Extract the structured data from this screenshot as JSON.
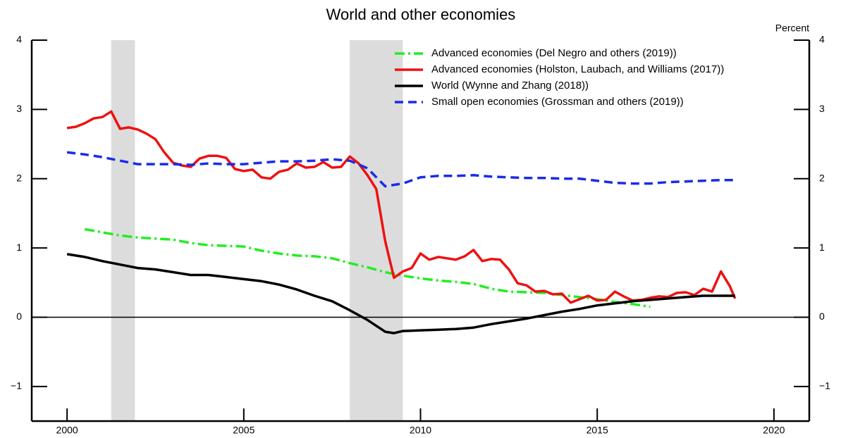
{
  "chart_data": {
    "type": "line",
    "title": "World and other economies",
    "y_label": "Percent",
    "xlim": [
      1999,
      2021
    ],
    "xticks": [
      2000,
      2005,
      2010,
      2015,
      2020
    ],
    "ylim": [
      -1.5,
      4
    ],
    "yticks": [
      {
        "value": -1,
        "label": "−1"
      },
      0,
      1,
      2,
      3,
      4
    ],
    "zero_line": true,
    "shaded_periods": [
      [
        2001.25,
        2001.92
      ],
      [
        2008.0,
        2009.5
      ]
    ],
    "shade_color": "#dcdcdc",
    "series": [
      {
        "name": "Advanced economies (Del Negro and others (2019))",
        "color": "#22ee22",
        "line_style": "dash-dot",
        "x": [
          2000.5,
          2001.5,
          2002,
          2003,
          2003.5,
          2004,
          2005,
          2005.5,
          2006,
          2006.5,
          2007,
          2007.5,
          2008,
          2008.5,
          2009,
          2009.5,
          2010,
          2010.5,
          2011,
          2011.5,
          2012,
          2012.5,
          2013,
          2013.5,
          2014,
          2014.5,
          2015,
          2015.5,
          2016,
          2016.5
        ],
        "values": [
          1.27,
          1.18,
          1.15,
          1.12,
          1.07,
          1.04,
          1.02,
          0.96,
          0.92,
          0.89,
          0.88,
          0.85,
          0.78,
          0.72,
          0.65,
          0.6,
          0.56,
          0.53,
          0.51,
          0.48,
          0.41,
          0.37,
          0.36,
          0.35,
          0.32,
          0.29,
          0.26,
          0.22,
          0.19,
          0.15
        ]
      },
      {
        "name": "Advanced economies (Holston, Laubach, and Williams (2017))",
        "color": "#ee1111",
        "line_style": "solid",
        "x": [
          2000,
          2000.25,
          2000.5,
          2000.75,
          2001,
          2001.25,
          2001.5,
          2001.75,
          2002,
          2002.25,
          2002.5,
          2002.75,
          2003,
          2003.25,
          2003.5,
          2003.75,
          2004,
          2004.25,
          2004.5,
          2004.75,
          2005,
          2005.25,
          2005.5,
          2005.75,
          2006,
          2006.25,
          2006.5,
          2006.75,
          2007,
          2007.25,
          2007.5,
          2007.75,
          2008,
          2008.25,
          2008.5,
          2008.75,
          2009,
          2009.25,
          2009.5,
          2009.75,
          2010,
          2010.25,
          2010.5,
          2010.75,
          2011,
          2011.25,
          2011.5,
          2011.75,
          2012,
          2012.25,
          2012.5,
          2012.75,
          2013,
          2013.25,
          2013.5,
          2013.75,
          2014,
          2014.25,
          2014.5,
          2014.75,
          2015,
          2015.25,
          2015.5,
          2015.75,
          2016,
          2016.25,
          2016.5,
          2016.75,
          2017,
          2017.25,
          2017.5,
          2017.75,
          2018,
          2018.25,
          2018.5,
          2018.75,
          2018.9
        ],
        "values": [
          2.73,
          2.75,
          2.8,
          2.87,
          2.89,
          2.97,
          2.72,
          2.74,
          2.71,
          2.65,
          2.57,
          2.38,
          2.23,
          2.19,
          2.17,
          2.29,
          2.33,
          2.33,
          2.3,
          2.14,
          2.11,
          2.13,
          2.02,
          2.0,
          2.1,
          2.13,
          2.22,
          2.16,
          2.17,
          2.24,
          2.16,
          2.17,
          2.32,
          2.22,
          2.05,
          1.85,
          1.1,
          0.57,
          0.66,
          0.71,
          0.92,
          0.83,
          0.87,
          0.85,
          0.83,
          0.88,
          0.97,
          0.81,
          0.84,
          0.83,
          0.69,
          0.49,
          0.46,
          0.37,
          0.38,
          0.33,
          0.34,
          0.21,
          0.26,
          0.31,
          0.24,
          0.25,
          0.37,
          0.3,
          0.24,
          0.25,
          0.28,
          0.3,
          0.29,
          0.35,
          0.36,
          0.32,
          0.41,
          0.37,
          0.66,
          0.45,
          0.27
        ]
      },
      {
        "name": "World (Wynne and Zhang (2018))",
        "color": "#000000",
        "line_style": "solid",
        "x": [
          2000,
          2000.5,
          2001,
          2001.5,
          2002,
          2002.5,
          2003,
          2003.5,
          2004,
          2004.5,
          2005,
          2005.5,
          2006,
          2006.5,
          2007,
          2007.5,
          2008,
          2008.5,
          2009,
          2009.25,
          2009.5,
          2010,
          2010.5,
          2011,
          2011.5,
          2012,
          2012.5,
          2013,
          2013.5,
          2014,
          2014.5,
          2015,
          2015.5,
          2016,
          2016.5,
          2017,
          2017.5,
          2018,
          2018.5,
          2018.9
        ],
        "values": [
          0.91,
          0.87,
          0.81,
          0.76,
          0.71,
          0.69,
          0.65,
          0.61,
          0.61,
          0.58,
          0.55,
          0.52,
          0.47,
          0.4,
          0.31,
          0.23,
          0.1,
          -0.04,
          -0.21,
          -0.23,
          -0.2,
          -0.19,
          -0.18,
          -0.17,
          -0.15,
          -0.1,
          -0.06,
          -0.02,
          0.03,
          0.08,
          0.12,
          0.17,
          0.2,
          0.23,
          0.25,
          0.27,
          0.29,
          0.31,
          0.31,
          0.31
        ]
      },
      {
        "name": "Small open economies (Grossman and others (2019))",
        "color": "#1a2be8",
        "line_style": "dashed",
        "x": [
          2000,
          2000.5,
          2001,
          2001.5,
          2002,
          2002.5,
          2003,
          2003.5,
          2004,
          2004.5,
          2005,
          2005.5,
          2006,
          2006.5,
          2007,
          2007.5,
          2008,
          2008.5,
          2009,
          2009.5,
          2010,
          2010.5,
          2011,
          2011.5,
          2012,
          2012.5,
          2013,
          2013.5,
          2014,
          2014.5,
          2015,
          2015.5,
          2016,
          2016.5,
          2017,
          2017.5,
          2018,
          2018.5,
          2018.9
        ],
        "values": [
          2.38,
          2.35,
          2.31,
          2.26,
          2.21,
          2.21,
          2.21,
          2.2,
          2.22,
          2.21,
          2.21,
          2.23,
          2.25,
          2.25,
          2.26,
          2.28,
          2.26,
          2.15,
          1.89,
          1.93,
          2.02,
          2.04,
          2.04,
          2.05,
          2.03,
          2.02,
          2.01,
          2.01,
          2.0,
          2.0,
          1.97,
          1.94,
          1.93,
          1.93,
          1.95,
          1.96,
          1.97,
          1.98,
          1.98
        ]
      }
    ]
  }
}
